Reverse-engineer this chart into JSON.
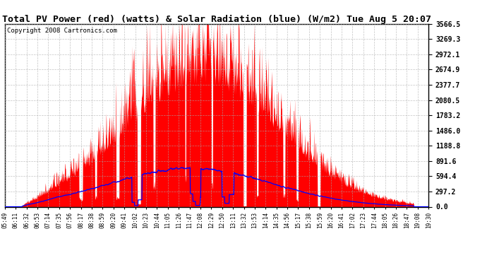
{
  "title": "Total PV Power (red) (watts) & Solar Radiation (blue) (W/m2) Tue Aug 5 20:07",
  "copyright": "Copyright 2008 Cartronics.com",
  "ymax": 3566.5,
  "ymin": 0.0,
  "yticks": [
    0.0,
    297.2,
    594.4,
    891.6,
    1188.8,
    1486.0,
    1783.2,
    2080.5,
    2377.7,
    2674.9,
    2972.1,
    3269.3,
    3566.5
  ],
  "xtick_labels": [
    "05:49",
    "06:11",
    "06:32",
    "06:53",
    "07:14",
    "07:35",
    "07:56",
    "08:17",
    "08:38",
    "08:59",
    "09:20",
    "09:41",
    "10:02",
    "10:23",
    "10:44",
    "11:05",
    "11:26",
    "11:47",
    "12:08",
    "12:29",
    "12:50",
    "13:11",
    "13:32",
    "13:53",
    "14:14",
    "14:35",
    "14:56",
    "15:17",
    "15:38",
    "15:59",
    "16:20",
    "16:41",
    "17:02",
    "17:23",
    "17:44",
    "18:05",
    "18:26",
    "18:47",
    "19:08",
    "19:30"
  ],
  "bg_color": "#ffffff",
  "red_color": "#ff0000",
  "blue_color": "#0000ff",
  "grid_color": "#aaaaaa",
  "title_fontsize": 9.5,
  "copyright_fontsize": 6.5,
  "tick_fontsize": 5.5,
  "ytick_fontsize": 7.0,
  "solar_peak": 750,
  "pv_peak": 3400
}
